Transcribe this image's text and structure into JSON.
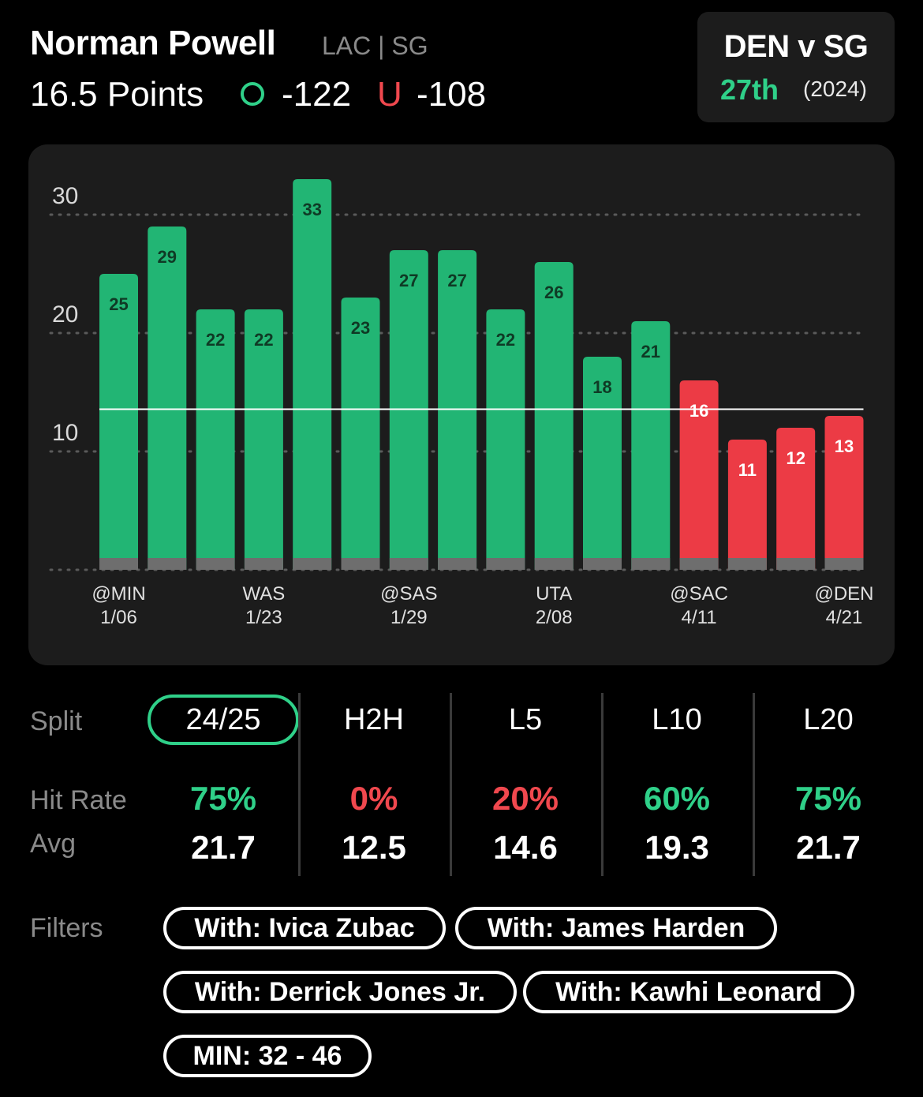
{
  "header": {
    "player_name": "Norman Powell",
    "team_pos": "LAC | SG",
    "line_label": "16.5 Points",
    "over_symbol": "O",
    "over_odds": "-122",
    "under_symbol": "U",
    "under_odds": "-108"
  },
  "matchup": {
    "title": "DEN v SG",
    "rank": "27th",
    "year": "(2024)"
  },
  "colors": {
    "over": "#22b574",
    "under": "#ec3b45",
    "accent_green": "#2fd089",
    "accent_red": "#f0484e"
  },
  "chart_data": {
    "type": "bar",
    "values": [
      25,
      29,
      22,
      22,
      33,
      23,
      27,
      27,
      22,
      26,
      18,
      21,
      16,
      11,
      12,
      13
    ],
    "hit": [
      true,
      true,
      true,
      true,
      true,
      true,
      true,
      true,
      true,
      true,
      true,
      true,
      false,
      false,
      false,
      false
    ],
    "x_labels": [
      {
        "index": 0,
        "opp": "@MIN",
        "date": "1/06"
      },
      {
        "index": 3,
        "opp": "WAS",
        "date": "1/23"
      },
      {
        "index": 6,
        "opp": "@SAS",
        "date": "1/29"
      },
      {
        "index": 9,
        "opp": "UTA",
        "date": "2/08"
      },
      {
        "index": 12,
        "opp": "@SAC",
        "date": "4/11"
      },
      {
        "index": 15,
        "opp": "@DEN",
        "date": "4/21"
      }
    ],
    "y_ticks": [
      10,
      20,
      30
    ],
    "ylim": [
      0,
      33
    ],
    "threshold": 16.5,
    "grid": true
  },
  "splits": {
    "label": "Split",
    "hit_label": "Hit Rate",
    "avg_label": "Avg",
    "columns": [
      {
        "tab": "24/25",
        "hit": "75%",
        "avg": "21.7",
        "active": true,
        "good": true
      },
      {
        "tab": "H2H",
        "hit": "0%",
        "avg": "12.5",
        "active": false,
        "good": false
      },
      {
        "tab": "L5",
        "hit": "20%",
        "avg": "14.6",
        "active": false,
        "good": false
      },
      {
        "tab": "L10",
        "hit": "60%",
        "avg": "19.3",
        "active": false,
        "good": true
      },
      {
        "tab": "L20",
        "hit": "75%",
        "avg": "21.7",
        "active": false,
        "good": true
      }
    ]
  },
  "filters": {
    "label": "Filters",
    "chips": [
      "With: Ivica Zubac",
      "With: James Harden",
      "With: Derrick Jones Jr.",
      "With: Kawhi Leonard",
      "MIN: 32 - 46"
    ]
  }
}
